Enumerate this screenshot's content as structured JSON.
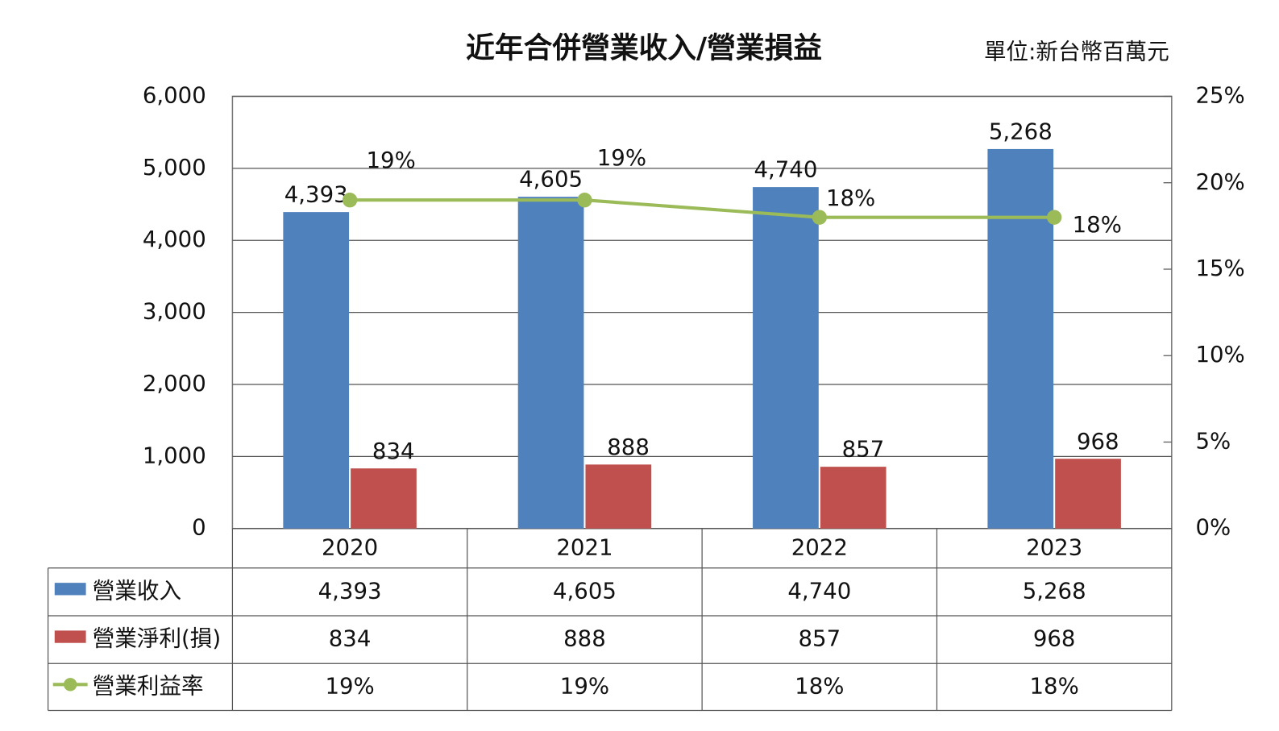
{
  "chart_data": {
    "type": "bar-line-table",
    "title": "近年合併營業收入/營業損益",
    "unit": "單位:新台幣百萬元",
    "categories": [
      "2020",
      "2021",
      "2022",
      "2023"
    ],
    "series": [
      {
        "name": "營業收入",
        "type": "bar",
        "color": "#4f81bd",
        "values": [
          4393,
          4605,
          4740,
          5268
        ],
        "value_labels": [
          "4,393",
          "4,605",
          "4,740",
          "5,268"
        ]
      },
      {
        "name": "營業淨利(損)",
        "type": "bar",
        "color": "#c0504d",
        "values": [
          834,
          888,
          857,
          968
        ],
        "value_labels": [
          "834",
          "888",
          "857",
          "968"
        ]
      },
      {
        "name": "營業利益率",
        "type": "line",
        "axis": "y2",
        "color": "#9bbb59",
        "values": [
          19,
          19,
          18,
          18
        ],
        "value_labels": [
          "19%",
          "19%",
          "18%",
          "18%"
        ]
      }
    ],
    "ylim": [
      0,
      6000
    ],
    "yticks": [
      {
        "value": 0,
        "label": "0"
      },
      {
        "value": 1000,
        "label": "1,000"
      },
      {
        "value": 2000,
        "label": "2,000"
      },
      {
        "value": 3000,
        "label": "3,000"
      },
      {
        "value": 4000,
        "label": "4,000"
      },
      {
        "value": 5000,
        "label": "5,000"
      },
      {
        "value": 6000,
        "label": "6,000"
      }
    ],
    "y2lim": [
      0,
      25
    ],
    "y2ticks": [
      {
        "value": 0,
        "label": "0%"
      },
      {
        "value": 5,
        "label": "5%"
      },
      {
        "value": 10,
        "label": "10%"
      },
      {
        "value": 15,
        "label": "15%"
      },
      {
        "value": 20,
        "label": "20%"
      },
      {
        "value": 25,
        "label": "25%"
      }
    ],
    "grid": true
  }
}
